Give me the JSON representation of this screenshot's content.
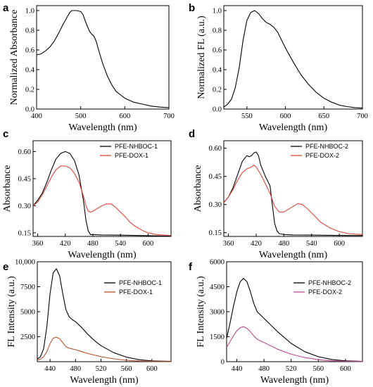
{
  "chart_data": [
    {
      "id": "a",
      "panel_label": "a",
      "type": "line",
      "xlabel": "Wavelength (nm)",
      "ylabel": "Normalized Absorbance",
      "xlim": [
        400,
        700
      ],
      "ylim": [
        0,
        1.05
      ],
      "xticks": [
        400,
        500,
        600,
        700
      ],
      "xtick_labels": [
        "400",
        "500",
        "600",
        "700"
      ],
      "yticks": [
        0,
        0.2,
        0.4,
        0.6,
        0.8,
        1.0
      ],
      "ytick_labels": [
        "0.0",
        "0.2",
        "0.4",
        "0.6",
        "0.8",
        "1.0"
      ],
      "series": [
        {
          "color": "#000000",
          "x": [
            400,
            410,
            420,
            430,
            440,
            450,
            460,
            470,
            475,
            480,
            490,
            500,
            505,
            510,
            515,
            520,
            525,
            530,
            535,
            540,
            550,
            560,
            570,
            580,
            600,
            620,
            640,
            660,
            680,
            700
          ],
          "y": [
            0.55,
            0.56,
            0.59,
            0.63,
            0.69,
            0.77,
            0.86,
            0.94,
            0.98,
            1.0,
            1.0,
            0.99,
            0.96,
            0.9,
            0.84,
            0.79,
            0.76,
            0.74,
            0.69,
            0.61,
            0.46,
            0.34,
            0.25,
            0.18,
            0.11,
            0.07,
            0.05,
            0.03,
            0.02,
            0.015
          ]
        }
      ]
    },
    {
      "id": "b",
      "panel_label": "b",
      "type": "line",
      "xlabel": "Wavelength (nm)",
      "ylabel": "Normalized FL (a.u.)",
      "xlim": [
        520,
        700
      ],
      "ylim": [
        0,
        1.05
      ],
      "xticks": [
        550,
        600,
        650,
        700
      ],
      "xtick_labels": [
        "550",
        "600",
        "650",
        "700"
      ],
      "yticks": [
        0,
        0.2,
        0.4,
        0.6,
        0.8,
        1.0
      ],
      "ytick_labels": [
        "0.0",
        "0.2",
        "0.4",
        "0.6",
        "0.8",
        "1.0"
      ],
      "series": [
        {
          "color": "#000000",
          "x": [
            520,
            525,
            530,
            535,
            540,
            545,
            550,
            555,
            560,
            565,
            570,
            575,
            580,
            585,
            590,
            595,
            600,
            610,
            620,
            630,
            640,
            650,
            660,
            670,
            680,
            690,
            700
          ],
          "y": [
            0.02,
            0.05,
            0.1,
            0.22,
            0.42,
            0.7,
            0.9,
            0.98,
            1.0,
            0.97,
            0.92,
            0.88,
            0.86,
            0.83,
            0.78,
            0.7,
            0.62,
            0.48,
            0.35,
            0.25,
            0.17,
            0.11,
            0.07,
            0.04,
            0.025,
            0.015,
            0.01
          ]
        }
      ]
    },
    {
      "id": "c",
      "panel_label": "c",
      "type": "line",
      "xlabel": "Wavelength (nm)",
      "ylabel": "Absorbance",
      "xlim": [
        350,
        650
      ],
      "ylim": [
        0.13,
        0.66
      ],
      "xticks": [
        360,
        420,
        480,
        540,
        600
      ],
      "xtick_labels": [
        "360",
        "420",
        "480",
        "540",
        "600"
      ],
      "yticks": [
        0.15,
        0.3,
        0.45,
        0.6
      ],
      "ytick_labels": [
        "0.15",
        "0.30",
        "0.45",
        "0.60"
      ],
      "legend_position": "top-right",
      "series": [
        {
          "name": "PFE-NHBOC-1",
          "color": "#000000",
          "x": [
            350,
            360,
            370,
            380,
            390,
            400,
            410,
            420,
            430,
            440,
            450,
            460,
            465,
            470,
            475,
            480,
            500,
            540,
            580,
            620,
            650
          ],
          "y": [
            0.3,
            0.33,
            0.37,
            0.43,
            0.5,
            0.56,
            0.59,
            0.6,
            0.59,
            0.55,
            0.47,
            0.32,
            0.22,
            0.16,
            0.14,
            0.14,
            0.138,
            0.137,
            0.135,
            0.133,
            0.132
          ]
        },
        {
          "name": "PFE-DOX-1",
          "color": "#e0453a",
          "x": [
            350,
            360,
            370,
            380,
            390,
            400,
            410,
            420,
            430,
            440,
            450,
            460,
            465,
            470,
            475,
            480,
            490,
            500,
            510,
            520,
            530,
            540,
            550,
            560,
            570,
            580,
            590,
            600,
            620,
            650
          ],
          "y": [
            0.3,
            0.32,
            0.36,
            0.41,
            0.46,
            0.5,
            0.52,
            0.52,
            0.51,
            0.48,
            0.43,
            0.35,
            0.3,
            0.27,
            0.265,
            0.27,
            0.285,
            0.3,
            0.31,
            0.31,
            0.29,
            0.265,
            0.24,
            0.21,
            0.19,
            0.175,
            0.16,
            0.15,
            0.14,
            0.135
          ]
        }
      ]
    },
    {
      "id": "d",
      "panel_label": "d",
      "type": "line",
      "xlabel": "Wavelength (nm)",
      "ylabel": "Absorbance",
      "xlim": [
        350,
        650
      ],
      "ylim": [
        0.13,
        0.64
      ],
      "xticks": [
        360,
        420,
        480,
        540,
        600
      ],
      "xtick_labels": [
        "360",
        "420",
        "480",
        "540",
        "600"
      ],
      "yticks": [
        0.15,
        0.3,
        0.45,
        0.6
      ],
      "ytick_labels": [
        "0.15",
        "0.30",
        "0.45",
        "0.60"
      ],
      "legend_position": "top-right",
      "series": [
        {
          "name": "PFE-NHBOC-2",
          "color": "#000000",
          "x": [
            350,
            360,
            370,
            380,
            390,
            400,
            405,
            410,
            415,
            420,
            425,
            430,
            440,
            450,
            455,
            460,
            465,
            470,
            480,
            500,
            540,
            580,
            620,
            650
          ],
          "y": [
            0.31,
            0.34,
            0.39,
            0.46,
            0.53,
            0.56,
            0.555,
            0.56,
            0.575,
            0.58,
            0.56,
            0.51,
            0.45,
            0.4,
            0.3,
            0.2,
            0.16,
            0.145,
            0.14,
            0.138,
            0.137,
            0.136,
            0.135,
            0.135
          ]
        },
        {
          "name": "PFE-DOX-2",
          "color": "#e0453a",
          "x": [
            350,
            360,
            370,
            380,
            390,
            400,
            410,
            415,
            420,
            430,
            440,
            450,
            460,
            470,
            480,
            490,
            500,
            510,
            520,
            530,
            540,
            550,
            560,
            570,
            580,
            600,
            620,
            650
          ],
          "y": [
            0.31,
            0.34,
            0.38,
            0.43,
            0.47,
            0.49,
            0.5,
            0.51,
            0.5,
            0.46,
            0.41,
            0.36,
            0.29,
            0.26,
            0.26,
            0.275,
            0.29,
            0.305,
            0.3,
            0.28,
            0.255,
            0.23,
            0.205,
            0.19,
            0.175,
            0.155,
            0.145,
            0.14
          ]
        }
      ]
    },
    {
      "id": "e",
      "panel_label": "e",
      "type": "line",
      "xlabel": "Wavelength (nm)",
      "ylabel": "FL Intensity (a.u.)",
      "xlim": [
        420,
        630
      ],
      "ylim": [
        0,
        10000
      ],
      "xticks": [
        440,
        480,
        520,
        560,
        600
      ],
      "xtick_labels": [
        "440",
        "480",
        "520",
        "560",
        "600"
      ],
      "yticks": [
        2500,
        5000,
        7500,
        10000
      ],
      "ytick_labels": [
        "2500",
        "5000",
        "7500",
        "10,000"
      ],
      "legend_position": "top-right",
      "series": [
        {
          "name": "PFE-NHBOC-1",
          "color": "#000000",
          "x": [
            420,
            425,
            430,
            435,
            440,
            445,
            450,
            455,
            460,
            465,
            470,
            475,
            480,
            490,
            500,
            510,
            520,
            540,
            560,
            580,
            600,
            630
          ],
          "y": [
            250,
            500,
            1300,
            3500,
            6800,
            8900,
            9300,
            8600,
            6800,
            5200,
            4500,
            4200,
            4000,
            3400,
            2700,
            2100,
            1600,
            900,
            450,
            200,
            80,
            30
          ]
        },
        {
          "name": "PFE-DOX-1",
          "color": "#b5532e",
          "x": [
            420,
            425,
            430,
            435,
            440,
            445,
            450,
            455,
            460,
            465,
            470,
            480,
            490,
            500,
            520,
            540,
            560,
            580,
            600,
            630
          ],
          "y": [
            150,
            250,
            500,
            1000,
            1800,
            2350,
            2450,
            2300,
            1900,
            1500,
            1350,
            1200,
            1000,
            800,
            500,
            280,
            140,
            60,
            20,
            10
          ]
        }
      ]
    },
    {
      "id": "f",
      "panel_label": "f",
      "type": "line",
      "xlabel": "Wavelength (nm)",
      "ylabel": "FL Intensity (a.u.)",
      "xlim": [
        425,
        625
      ],
      "ylim": [
        0,
        6000
      ],
      "xticks": [
        440,
        480,
        520,
        560,
        600
      ],
      "xtick_labels": [
        "440",
        "480",
        "520",
        "560",
        "600"
      ],
      "yticks": [
        0,
        1500,
        3000,
        4500,
        6000
      ],
      "ytick_labels": [
        "0",
        "1500",
        "3000",
        "4500",
        "6000"
      ],
      "legend_position": "top-right",
      "series": [
        {
          "name": "PFE-NHBOC-2",
          "color": "#000000",
          "x": [
            425,
            430,
            435,
            440,
            445,
            450,
            455,
            460,
            465,
            470,
            480,
            490,
            500,
            510,
            520,
            540,
            560,
            580,
            600,
            625
          ],
          "y": [
            1400,
            2300,
            3300,
            4200,
            4800,
            5000,
            4800,
            4200,
            3500,
            3000,
            2600,
            2200,
            1800,
            1450,
            1100,
            600,
            300,
            130,
            50,
            20
          ]
        },
        {
          "name": "PFE-DOX-2",
          "color": "#c0458f",
          "x": [
            425,
            430,
            435,
            440,
            445,
            450,
            455,
            460,
            465,
            470,
            480,
            490,
            500,
            520,
            540,
            560,
            580,
            600,
            625
          ],
          "y": [
            850,
            1200,
            1550,
            1850,
            2050,
            2100,
            2000,
            1800,
            1550,
            1350,
            1150,
            950,
            750,
            450,
            250,
            120,
            50,
            20,
            10
          ]
        }
      ]
    }
  ]
}
